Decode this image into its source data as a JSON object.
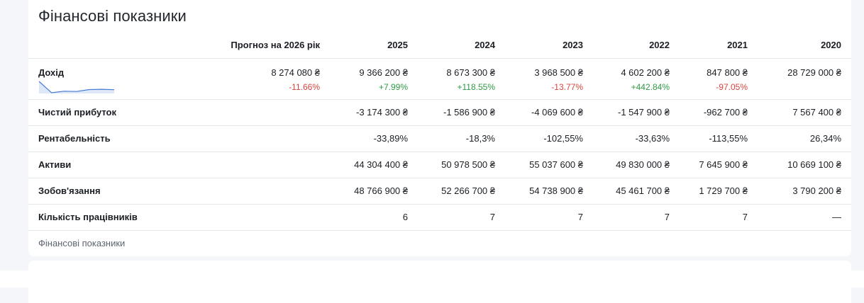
{
  "title": "Фінансові показники",
  "columns": [
    "Прогноз на 2026 рік",
    "2025",
    "2024",
    "2023",
    "2022",
    "2021",
    "2020"
  ],
  "rows": {
    "revenue": {
      "label": "Дохід",
      "values": [
        "8 274 080 ₴",
        "9 366 200 ₴",
        "8 673 300 ₴",
        "3 968 500 ₴",
        "4 602 200 ₴",
        "847 800 ₴",
        "28 729 000 ₴"
      ],
      "deltas": [
        "-11.66%",
        "+7.99%",
        "+118.55%",
        "-13.77%",
        "+442.84%",
        "-97.05%",
        ""
      ],
      "sparkline": [
        28729000,
        847800,
        4602200,
        3968500,
        8673300,
        9366200,
        8274080
      ]
    },
    "net_profit": {
      "label": "Чистий прибуток",
      "values": [
        "",
        "-3 174 300 ₴",
        "-1 586 900 ₴",
        "-4 069 600 ₴",
        "-1 547 900 ₴",
        "-962 700 ₴",
        "7 567 400 ₴"
      ]
    },
    "profitability": {
      "label": "Рентабельність",
      "values": [
        "",
        "-33,89%",
        "-18,3%",
        "-102,55%",
        "-33,63%",
        "-113,55%",
        "26,34%"
      ]
    },
    "assets": {
      "label": "Активи",
      "values": [
        "",
        "44 304 400 ₴",
        "50 978 500 ₴",
        "55 037 600 ₴",
        "49 830 000 ₴",
        "7 645 900 ₴",
        "10 669 100 ₴"
      ]
    },
    "liabilities": {
      "label": "Зобов'язання",
      "values": [
        "",
        "48 766 900 ₴",
        "52 266 700 ₴",
        "54 738 900 ₴",
        "45 461 700 ₴",
        "1 729 700 ₴",
        "3 790 200 ₴"
      ]
    },
    "employees": {
      "label": "Кількість працівників",
      "values": [
        "",
        "6",
        "7",
        "7",
        "7",
        "7",
        "—"
      ]
    }
  },
  "caption": "Фінансові показники",
  "colors": {
    "negative": "#d6453d",
    "positive": "#2e9a44",
    "sparkline": "#4a7bd6"
  }
}
